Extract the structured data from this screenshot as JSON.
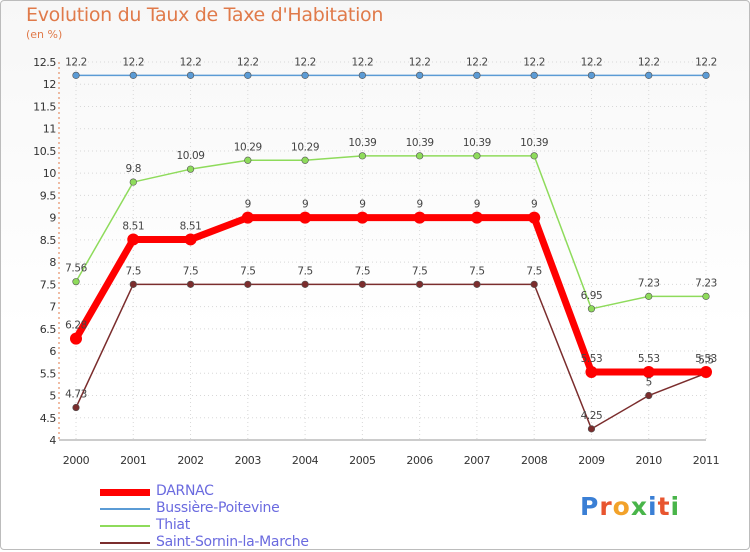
{
  "title": "Evolution du Taux de Taxe d'Habitation",
  "subtitle": "(en %)",
  "logo": {
    "text": "Proxiti",
    "colors": [
      "#3a7fd5",
      "#e8552f",
      "#f2a22a",
      "#49b54a",
      "#3a7fd5",
      "#e8552f",
      "#49b54a"
    ]
  },
  "chart_data": {
    "type": "line",
    "title": "Evolution du Taux de Taxe d'Habitation",
    "ylabel": "(en %)",
    "xlabel": "",
    "x": [
      "2000",
      "2001",
      "2002",
      "2003",
      "2004",
      "2005",
      "2006",
      "2007",
      "2008",
      "2009",
      "2010",
      "2011"
    ],
    "ylim": [
      4,
      12.5
    ],
    "yticks": [
      "4",
      "4.5",
      "5",
      "5.5",
      "6",
      "6.5",
      "7",
      "7.5",
      "8",
      "8.5",
      "9",
      "9.5",
      "10",
      "10.5",
      "11",
      "11.5",
      "12",
      "12.5"
    ],
    "grid": true,
    "legend_position": "bottom-left",
    "series": [
      {
        "name": "DARNAC",
        "color": "#ff0000",
        "values": [
          6.28,
          8.51,
          8.51,
          9,
          9,
          9,
          9,
          9,
          9,
          5.53,
          5.53,
          5.53
        ],
        "labels": [
          "6.28",
          "8.51",
          "8.51",
          "9",
          "9",
          "9",
          "9",
          "9",
          "9",
          "5.53",
          "5.53",
          "5.53"
        ]
      },
      {
        "name": "Bussière-Poitevine",
        "color": "#5b9bd5",
        "values": [
          12.2,
          12.2,
          12.2,
          12.2,
          12.2,
          12.2,
          12.2,
          12.2,
          12.2,
          12.2,
          12.2,
          12.2
        ],
        "labels": [
          "12.2",
          "12.2",
          "12.2",
          "12.2",
          "12.2",
          "12.2",
          "12.2",
          "12.2",
          "12.2",
          "12.2",
          "12.2",
          "12.2"
        ]
      },
      {
        "name": "Thiat",
        "color": "#8edb5b",
        "values": [
          7.56,
          9.8,
          10.09,
          10.29,
          10.29,
          10.39,
          10.39,
          10.39,
          10.39,
          6.95,
          7.23,
          7.23
        ],
        "labels": [
          "7.56",
          "9.8",
          "10.09",
          "10.29",
          "10.29",
          "10.39",
          "10.39",
          "10.39",
          "10.39",
          "6.95",
          "7.23",
          "7.23"
        ]
      },
      {
        "name": "Saint-Sornin-la-Marche",
        "color": "#7b2d2d",
        "values": [
          4.73,
          7.5,
          7.5,
          7.5,
          7.5,
          7.5,
          7.5,
          7.5,
          7.5,
          4.25,
          5,
          5.5
        ],
        "labels": [
          "4.73",
          "7.5",
          "7.5",
          "7.5",
          "7.5",
          "7.5",
          "7.5",
          "7.5",
          "7.5",
          "4.25",
          "5",
          "5.5"
        ]
      }
    ]
  }
}
